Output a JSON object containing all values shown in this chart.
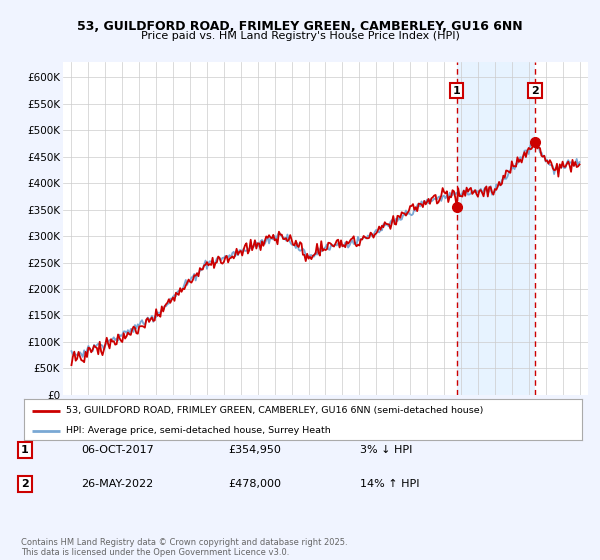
{
  "title_line1": "53, GUILDFORD ROAD, FRIMLEY GREEN, CAMBERLEY, GU16 6NN",
  "title_line2": "Price paid vs. HM Land Registry's House Price Index (HPI)",
  "legend_label1": "53, GUILDFORD ROAD, FRIMLEY GREEN, CAMBERLEY, GU16 6NN (semi-detached house)",
  "legend_label2": "HPI: Average price, semi-detached house, Surrey Heath",
  "footnote": "Contains HM Land Registry data © Crown copyright and database right 2025.\nThis data is licensed under the Open Government Licence v3.0.",
  "annotation1_label": "1",
  "annotation1_date": "06-OCT-2017",
  "annotation1_price": "£354,950",
  "annotation1_hpi": "3% ↓ HPI",
  "annotation2_label": "2",
  "annotation2_date": "26-MAY-2022",
  "annotation2_price": "£478,000",
  "annotation2_hpi": "14% ↑ HPI",
  "marker1_x": 2017.75,
  "marker2_x": 2022.37,
  "marker1_y": 354950,
  "marker2_y": 478000,
  "line_color_property": "#cc0000",
  "line_color_hpi": "#7aa8d4",
  "shade_color": "#ddeeff",
  "background_color": "#f0f4ff",
  "plot_bg_color": "#ffffff",
  "grid_color": "#cccccc",
  "ylim": [
    0,
    630000
  ],
  "xlim": [
    1994.5,
    2025.5
  ],
  "yticks": [
    0,
    50000,
    100000,
    150000,
    200000,
    250000,
    300000,
    350000,
    400000,
    450000,
    500000,
    550000,
    600000
  ],
  "ytick_labels": [
    "£0",
    "£50K",
    "£100K",
    "£150K",
    "£200K",
    "£250K",
    "£300K",
    "£350K",
    "£400K",
    "£450K",
    "£500K",
    "£550K",
    "£600K"
  ],
  "xticks": [
    1995,
    1996,
    1997,
    1998,
    1999,
    2000,
    2001,
    2002,
    2003,
    2004,
    2005,
    2006,
    2007,
    2008,
    2009,
    2010,
    2011,
    2012,
    2013,
    2014,
    2015,
    2016,
    2017,
    2018,
    2019,
    2020,
    2021,
    2022,
    2023,
    2024,
    2025
  ]
}
